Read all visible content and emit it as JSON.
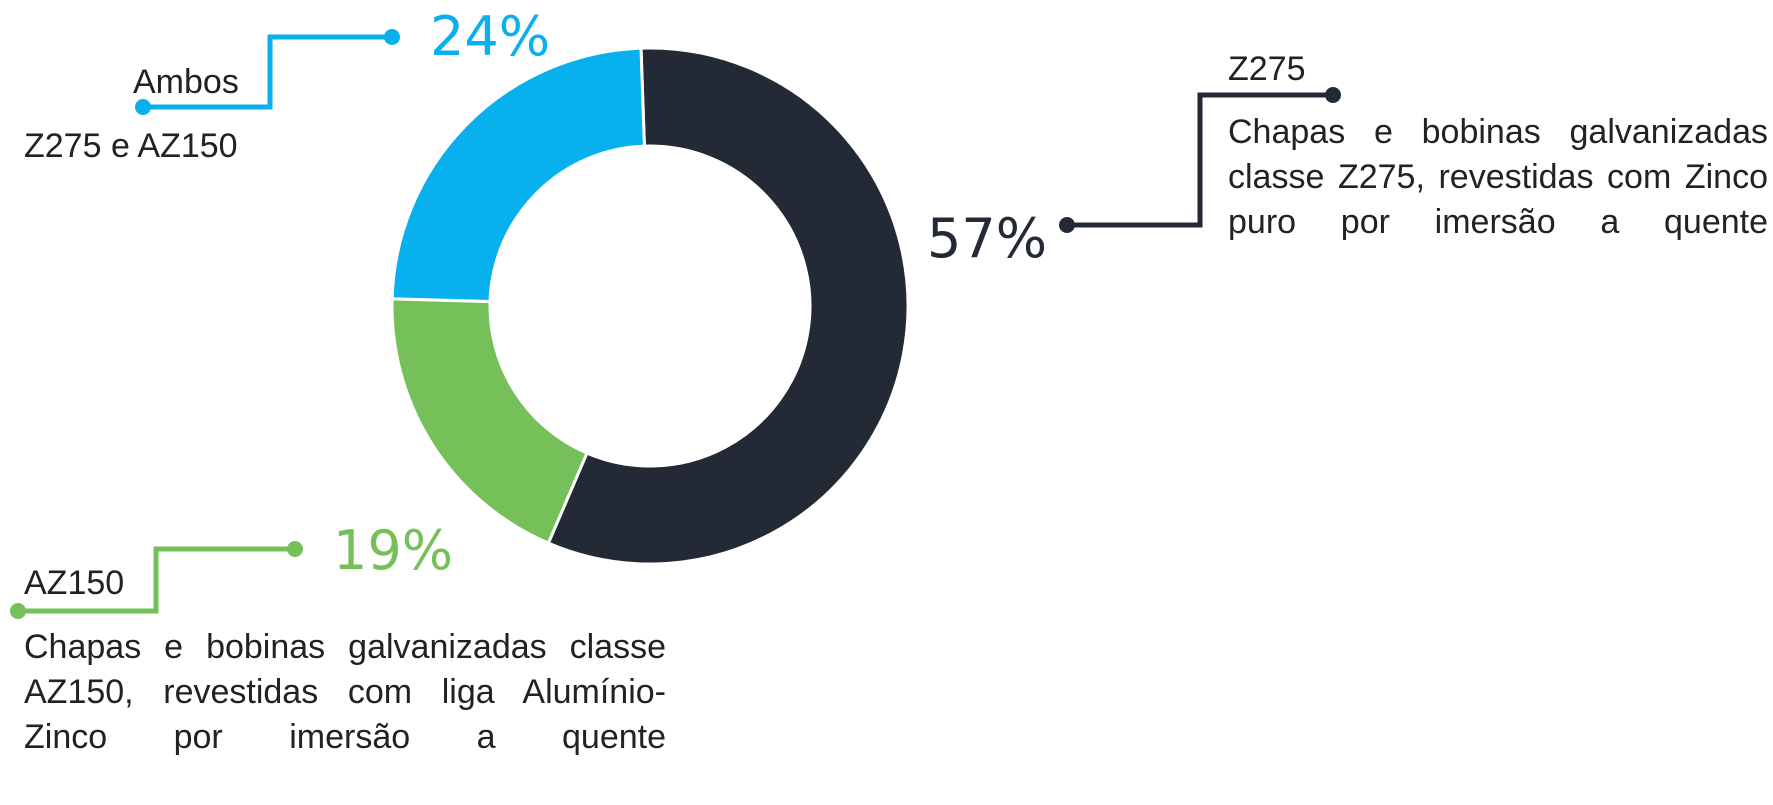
{
  "chart_data": {
    "type": "pie",
    "variant": "donut",
    "slices": [
      {
        "name": "Z275",
        "value": 57,
        "label": "57%",
        "color": "#232a35",
        "description": "Chapas e bobinas galvanizadas classe Z275, revestidas com Zinco puro por imersão a quente"
      },
      {
        "name": "AZ150",
        "value": 19,
        "label": "19%",
        "color": "#76c05a",
        "description": "Chapas e bobinas galvanizadas classe AZ150, revestidas com liga Alumínio-Zinco por imersão a quente"
      },
      {
        "name": "Ambos",
        "value": 24,
        "label": "24%",
        "color": "#08b0ee",
        "description": "Z275 e AZ150"
      }
    ]
  }
}
